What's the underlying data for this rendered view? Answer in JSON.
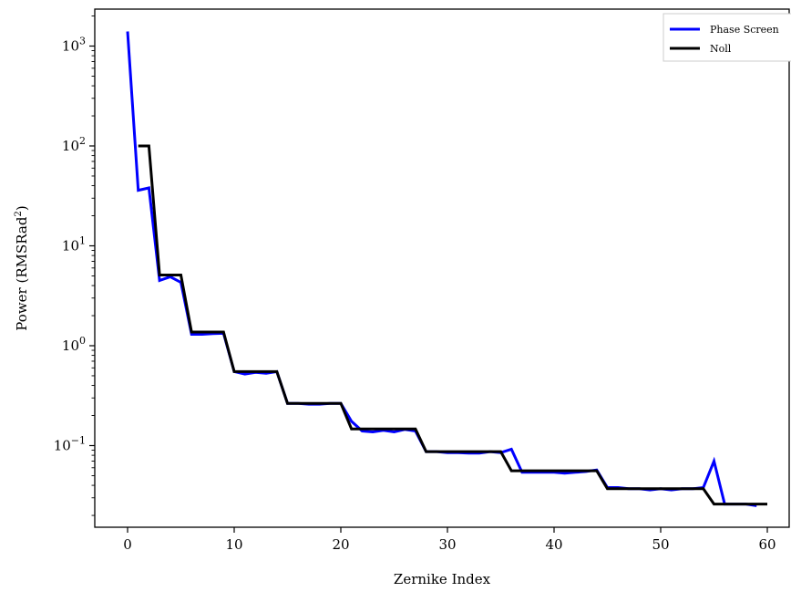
{
  "chart_data": {
    "type": "line",
    "title": "",
    "xlabel": "Zernike Index",
    "ylabel_main": "Power (RMSRad",
    "ylabel_sup": "2",
    "ylabel_close": ")",
    "xlim": [
      -3,
      61
    ],
    "ylim": [
      0.02,
      2000
    ],
    "yscale": "log",
    "grid": false,
    "legend_position": "top-right",
    "x_ticks": [
      0,
      10,
      20,
      30,
      40,
      50,
      60
    ],
    "x_tick_labels": [
      "0",
      "10",
      "20",
      "30",
      "40",
      "50",
      "60"
    ],
    "y_ticks": [
      1000,
      100,
      10,
      1,
      0.1
    ],
    "y_tick_base": [
      "10",
      "10",
      "10",
      "10",
      "10"
    ],
    "y_tick_exp": [
      "3",
      "2",
      "1",
      "0",
      "−1"
    ],
    "series": [
      {
        "name": "Phase Screen",
        "color": "#0000ff",
        "x": [
          0,
          1,
          2,
          3,
          4,
          5,
          6,
          7,
          8,
          9,
          10,
          11,
          12,
          13,
          14,
          15,
          16,
          17,
          18,
          19,
          20,
          21,
          22,
          23,
          24,
          25,
          26,
          27,
          28,
          29,
          30,
          31,
          32,
          33,
          34,
          35,
          36,
          37,
          38,
          39,
          40,
          41,
          42,
          43,
          44,
          45,
          46,
          47,
          48,
          49,
          50,
          51,
          52,
          53,
          54,
          55,
          56,
          57,
          58,
          59
        ],
        "values": [
          1400,
          36,
          38,
          4.5,
          4.9,
          4.3,
          1.3,
          1.3,
          1.32,
          1.33,
          0.55,
          0.52,
          0.54,
          0.53,
          0.55,
          0.265,
          0.265,
          0.26,
          0.26,
          0.265,
          0.265,
          0.175,
          0.14,
          0.137,
          0.142,
          0.137,
          0.145,
          0.14,
          0.087,
          0.087,
          0.085,
          0.085,
          0.084,
          0.084,
          0.087,
          0.085,
          0.092,
          0.054,
          0.054,
          0.054,
          0.054,
          0.053,
          0.054,
          0.055,
          0.057,
          0.038,
          0.038,
          0.037,
          0.037,
          0.036,
          0.037,
          0.036,
          0.037,
          0.037,
          0.038,
          0.07,
          0.026,
          0.026,
          0.026,
          0.025
        ]
      },
      {
        "name": "Noll",
        "color": "#000000",
        "x": [
          1,
          2,
          2,
          3,
          3,
          5,
          5,
          6,
          6,
          9,
          9,
          10,
          10,
          14,
          14,
          15,
          15,
          20,
          20,
          21,
          21,
          27,
          27,
          28,
          28,
          35,
          35,
          36,
          36,
          44,
          44,
          45,
          45,
          54,
          54,
          55,
          55,
          60
        ],
        "values": [
          100,
          100,
          100,
          5.1,
          5.1,
          5.1,
          5.1,
          1.37,
          1.37,
          1.37,
          1.37,
          0.55,
          0.55,
          0.55,
          0.55,
          0.265,
          0.265,
          0.265,
          0.265,
          0.147,
          0.147,
          0.147,
          0.147,
          0.087,
          0.087,
          0.087,
          0.087,
          0.056,
          0.056,
          0.056,
          0.056,
          0.037,
          0.037,
          0.037,
          0.037,
          0.026,
          0.026,
          0.026
        ]
      }
    ]
  }
}
